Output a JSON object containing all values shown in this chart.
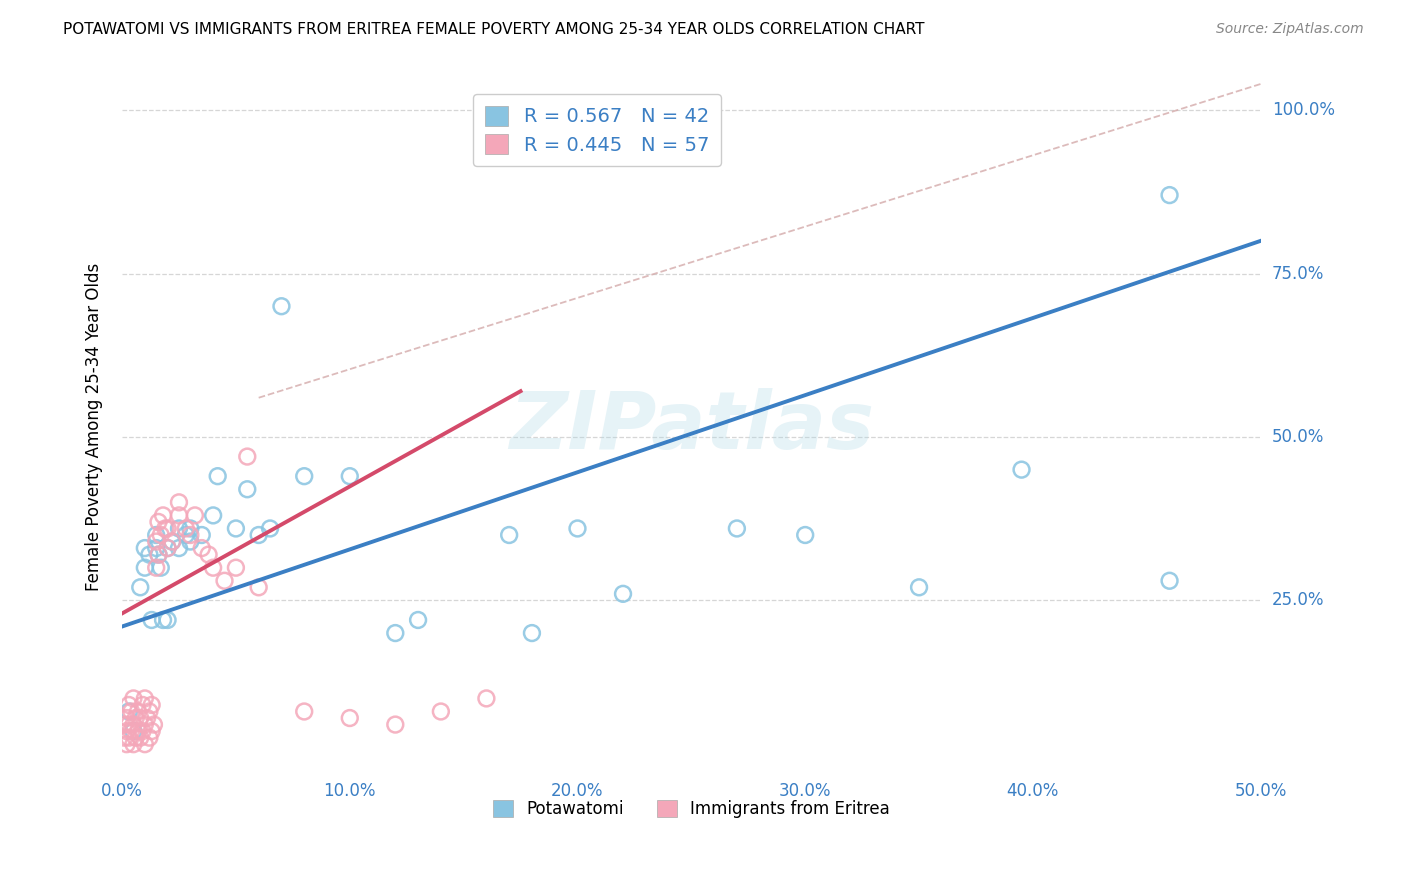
{
  "title": "POTAWATOMI VS IMMIGRANTS FROM ERITREA FEMALE POVERTY AMONG 25-34 YEAR OLDS CORRELATION CHART",
  "source": "Source: ZipAtlas.com",
  "ylabel_label": "Female Poverty Among 25-34 Year Olds",
  "xlim": [
    0.0,
    0.5
  ],
  "ylim": [
    -0.02,
    1.05
  ],
  "x_ticks": [
    0.0,
    0.1,
    0.2,
    0.3,
    0.4,
    0.5
  ],
  "x_tick_labels": [
    "0.0%",
    "10.0%",
    "20.0%",
    "30.0%",
    "40.0%",
    "50.0%"
  ],
  "y_ticks": [
    0.25,
    0.5,
    0.75,
    1.0
  ],
  "y_tick_labels": [
    "25.0%",
    "50.0%",
    "75.0%",
    "100.0%"
  ],
  "blue_color": "#89c4e1",
  "pink_color": "#f4a7b9",
  "blue_edge_color": "#5aa8d0",
  "pink_edge_color": "#e87a9a",
  "blue_line_color": "#3b7fc4",
  "pink_line_color": "#d44a6a",
  "dashed_line_color": "#ccbbbb",
  "watermark": "ZIPatlas",
  "legend_R1": "R = 0.567",
  "legend_N1": "N = 42",
  "legend_R2": "R = 0.445",
  "legend_N2": "N = 57",
  "blue_scatter_x": [
    0.003,
    0.005,
    0.008,
    0.01,
    0.01,
    0.012,
    0.013,
    0.015,
    0.015,
    0.016,
    0.017,
    0.018,
    0.02,
    0.02,
    0.022,
    0.025,
    0.025,
    0.028,
    0.03,
    0.03,
    0.035,
    0.04,
    0.042,
    0.05,
    0.055,
    0.06,
    0.065,
    0.07,
    0.08,
    0.1,
    0.12,
    0.13,
    0.17,
    0.18,
    0.2,
    0.22,
    0.27,
    0.3,
    0.35,
    0.395,
    0.46,
    0.46
  ],
  "blue_scatter_y": [
    0.08,
    0.05,
    0.27,
    0.3,
    0.33,
    0.32,
    0.22,
    0.33,
    0.35,
    0.32,
    0.3,
    0.22,
    0.33,
    0.22,
    0.34,
    0.33,
    0.36,
    0.35,
    0.34,
    0.36,
    0.35,
    0.38,
    0.44,
    0.36,
    0.42,
    0.35,
    0.36,
    0.7,
    0.44,
    0.44,
    0.2,
    0.22,
    0.35,
    0.2,
    0.36,
    0.26,
    0.36,
    0.35,
    0.27,
    0.45,
    0.28,
    0.87
  ],
  "pink_scatter_x": [
    0.001,
    0.001,
    0.002,
    0.002,
    0.002,
    0.003,
    0.003,
    0.003,
    0.004,
    0.004,
    0.005,
    0.005,
    0.005,
    0.006,
    0.006,
    0.007,
    0.007,
    0.008,
    0.008,
    0.009,
    0.009,
    0.01,
    0.01,
    0.01,
    0.011,
    0.012,
    0.012,
    0.013,
    0.013,
    0.014,
    0.015,
    0.015,
    0.016,
    0.016,
    0.017,
    0.018,
    0.019,
    0.02,
    0.02,
    0.022,
    0.025,
    0.025,
    0.028,
    0.03,
    0.032,
    0.035,
    0.038,
    0.04,
    0.045,
    0.05,
    0.055,
    0.06,
    0.08,
    0.1,
    0.12,
    0.14,
    0.16
  ],
  "pink_scatter_y": [
    0.04,
    0.06,
    0.03,
    0.05,
    0.07,
    0.04,
    0.06,
    0.09,
    0.05,
    0.08,
    0.03,
    0.06,
    0.1,
    0.04,
    0.07,
    0.05,
    0.08,
    0.04,
    0.07,
    0.05,
    0.09,
    0.03,
    0.06,
    0.1,
    0.07,
    0.04,
    0.08,
    0.05,
    0.09,
    0.06,
    0.3,
    0.34,
    0.32,
    0.37,
    0.35,
    0.38,
    0.36,
    0.33,
    0.36,
    0.34,
    0.4,
    0.38,
    0.36,
    0.35,
    0.38,
    0.33,
    0.32,
    0.3,
    0.28,
    0.3,
    0.47,
    0.27,
    0.08,
    0.07,
    0.06,
    0.08,
    0.1
  ],
  "blue_line_x": [
    0.0,
    0.5
  ],
  "blue_line_y": [
    0.21,
    0.8
  ],
  "pink_line_x": [
    0.0,
    0.175
  ],
  "pink_line_y": [
    0.23,
    0.57
  ],
  "dashed_line_x1": 0.06,
  "dashed_line_y1": 0.56,
  "dashed_line_x2": 0.5,
  "dashed_line_y2": 1.04,
  "background_color": "#ffffff",
  "grid_color": "#cccccc"
}
